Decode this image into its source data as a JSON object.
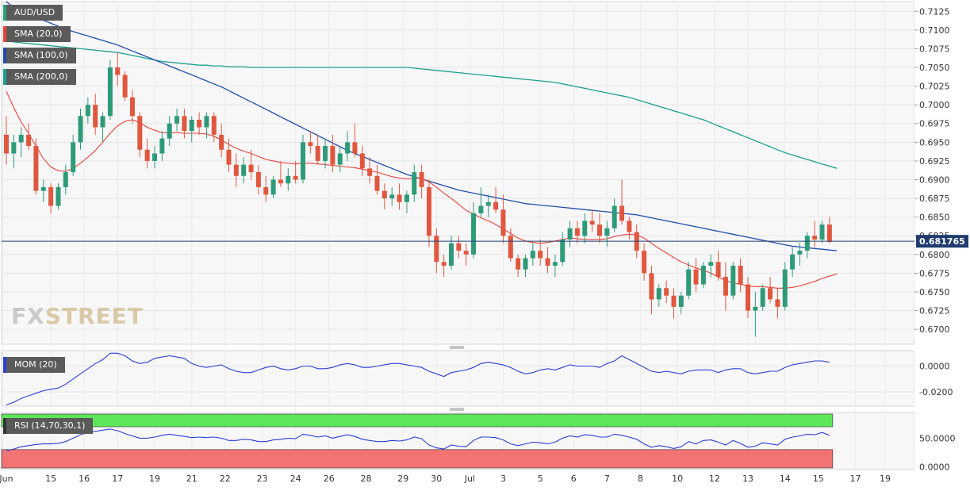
{
  "symbol": "AUD/USD",
  "watermark": {
    "part1": "FX",
    "part2": "STREET"
  },
  "legend": {
    "main": [
      {
        "label": "AUD/USD",
        "color": "#2aa37a"
      },
      {
        "label": "SMA (20,0)",
        "color": "#e8433b"
      },
      {
        "label": "SMA (100,0)",
        "color": "#1f4ea8"
      },
      {
        "label": "SMA (200,0)",
        "color": "#1aa08f"
      }
    ],
    "mom": {
      "label": "MOM (20)",
      "color": "#2a3fd6"
    },
    "rsi": {
      "label": "RSI (14,70,30,1)",
      "color": "#333333"
    }
  },
  "colors": {
    "up": "#2e9a78",
    "down": "#e0573f",
    "sma20": "#e8433b",
    "sma100": "#1f4ea8",
    "sma200": "#1aa08f",
    "indicator": "#2a3fd6",
    "price_line": "#1f3c6e",
    "rsi_overbought_band": "#5ee65a",
    "rsi_oversold_band": "#f27373"
  },
  "chart_data": {
    "type": "candlestick",
    "current_price": "0.681765",
    "x_labels": [
      "Jun",
      "15",
      "16",
      "17",
      "19",
      "21",
      "22",
      "23",
      "24",
      "26",
      "28",
      "29",
      "30",
      "Jul",
      "3",
      "5",
      "6",
      "7",
      "8",
      "10",
      "12",
      "13",
      "14",
      "15",
      "17",
      "19"
    ],
    "y_axis_main": {
      "ticks": [
        "0.7125",
        "0.7100",
        "0.7075",
        "0.7050",
        "0.7025",
        "0.7000",
        "0.6975",
        "0.6950",
        "0.6925",
        "0.6900",
        "0.6875",
        "0.6850",
        "0.6825",
        "0.6800",
        "0.6775",
        "0.6750",
        "0.6725",
        "0.6700"
      ],
      "range": [
        0.668,
        0.7138
      ]
    },
    "y_axis_mom": {
      "ticks": [
        "0.0000",
        "-0.0200"
      ],
      "range": [
        -0.031,
        0.012
      ]
    },
    "y_axis_rsi": {
      "ticks": [
        "50.0000",
        "0.0000"
      ],
      "range": [
        -5,
        95
      ],
      "overbought": 70,
      "oversold": 30
    },
    "candles": [
      [
        0.696,
        0.6985,
        0.692,
        0.6935
      ],
      [
        0.6935,
        0.696,
        0.6915,
        0.695
      ],
      [
        0.695,
        0.697,
        0.693,
        0.696
      ],
      [
        0.696,
        0.6975,
        0.694,
        0.6945
      ],
      [
        0.6945,
        0.6955,
        0.688,
        0.6885
      ],
      [
        0.6885,
        0.69,
        0.687,
        0.689
      ],
      [
        0.689,
        0.6895,
        0.6855,
        0.6865
      ],
      [
        0.6865,
        0.6895,
        0.686,
        0.689
      ],
      [
        0.689,
        0.692,
        0.688,
        0.691
      ],
      [
        0.691,
        0.696,
        0.6905,
        0.695
      ],
      [
        0.695,
        0.6995,
        0.694,
        0.6985
      ],
      [
        0.6985,
        0.701,
        0.6975,
        0.7
      ],
      [
        0.7,
        0.7015,
        0.696,
        0.697
      ],
      [
        0.697,
        0.699,
        0.695,
        0.6985
      ],
      [
        0.6985,
        0.706,
        0.698,
        0.705
      ],
      [
        0.705,
        0.707,
        0.7025,
        0.704
      ],
      [
        0.704,
        0.7045,
        0.7005,
        0.701
      ],
      [
        0.701,
        0.702,
        0.6975,
        0.6985
      ],
      [
        0.6985,
        0.699,
        0.693,
        0.694
      ],
      [
        0.694,
        0.6955,
        0.6915,
        0.6925
      ],
      [
        0.6925,
        0.6945,
        0.6915,
        0.6935
      ],
      [
        0.6935,
        0.6965,
        0.6925,
        0.6955
      ],
      [
        0.6955,
        0.6985,
        0.6945,
        0.6975
      ],
      [
        0.6975,
        0.6995,
        0.6965,
        0.6985
      ],
      [
        0.6985,
        0.6995,
        0.6955,
        0.6965
      ],
      [
        0.6965,
        0.6985,
        0.695,
        0.698
      ],
      [
        0.698,
        0.699,
        0.696,
        0.697
      ],
      [
        0.697,
        0.699,
        0.6955,
        0.6985
      ],
      [
        0.6985,
        0.699,
        0.695,
        0.696
      ],
      [
        0.696,
        0.6975,
        0.693,
        0.694
      ],
      [
        0.694,
        0.6955,
        0.691,
        0.692
      ],
      [
        0.692,
        0.6935,
        0.689,
        0.6905
      ],
      [
        0.6905,
        0.693,
        0.6895,
        0.692
      ],
      [
        0.692,
        0.694,
        0.69,
        0.691
      ],
      [
        0.691,
        0.692,
        0.688,
        0.689
      ],
      [
        0.689,
        0.6905,
        0.687,
        0.688
      ],
      [
        0.688,
        0.6905,
        0.6875,
        0.69
      ],
      [
        0.69,
        0.6925,
        0.689,
        0.6895
      ],
      [
        0.6895,
        0.6915,
        0.6885,
        0.6905
      ],
      [
        0.6905,
        0.6925,
        0.6895,
        0.69
      ],
      [
        0.69,
        0.696,
        0.6895,
        0.695
      ],
      [
        0.695,
        0.6965,
        0.6935,
        0.6945
      ],
      [
        0.6945,
        0.696,
        0.692,
        0.6925
      ],
      [
        0.6925,
        0.6955,
        0.6915,
        0.6945
      ],
      [
        0.6945,
        0.696,
        0.691,
        0.692
      ],
      [
        0.692,
        0.6945,
        0.691,
        0.6935
      ],
      [
        0.6935,
        0.6965,
        0.6925,
        0.695
      ],
      [
        0.695,
        0.6975,
        0.693,
        0.6935
      ],
      [
        0.6935,
        0.6945,
        0.6905,
        0.6915
      ],
      [
        0.6915,
        0.693,
        0.6895,
        0.6905
      ],
      [
        0.6905,
        0.692,
        0.688,
        0.6885
      ],
      [
        0.6885,
        0.6895,
        0.686,
        0.6875
      ],
      [
        0.6875,
        0.689,
        0.6865,
        0.688
      ],
      [
        0.688,
        0.6895,
        0.686,
        0.687
      ],
      [
        0.687,
        0.6885,
        0.6855,
        0.688
      ],
      [
        0.688,
        0.692,
        0.687,
        0.691
      ],
      [
        0.691,
        0.692,
        0.6875,
        0.689
      ],
      [
        0.689,
        0.69,
        0.681,
        0.6825
      ],
      [
        0.6825,
        0.6835,
        0.6775,
        0.679
      ],
      [
        0.679,
        0.68,
        0.677,
        0.6785
      ],
      [
        0.6785,
        0.6825,
        0.678,
        0.6815
      ],
      [
        0.6815,
        0.6825,
        0.6795,
        0.6805
      ],
      [
        0.6805,
        0.6815,
        0.6785,
        0.68
      ],
      [
        0.68,
        0.687,
        0.6795,
        0.6855
      ],
      [
        0.6855,
        0.689,
        0.685,
        0.6865
      ],
      [
        0.6865,
        0.688,
        0.685,
        0.687
      ],
      [
        0.687,
        0.689,
        0.6855,
        0.686
      ],
      [
        0.686,
        0.688,
        0.6815,
        0.6825
      ],
      [
        0.6825,
        0.6835,
        0.679,
        0.6795
      ],
      [
        0.6795,
        0.68,
        0.677,
        0.678
      ],
      [
        0.678,
        0.68,
        0.677,
        0.6795
      ],
      [
        0.6795,
        0.6815,
        0.6785,
        0.6805
      ],
      [
        0.6805,
        0.682,
        0.6785,
        0.6795
      ],
      [
        0.6795,
        0.681,
        0.6775,
        0.6785
      ],
      [
        0.6785,
        0.68,
        0.677,
        0.679
      ],
      [
        0.679,
        0.683,
        0.6785,
        0.682
      ],
      [
        0.682,
        0.6845,
        0.681,
        0.6835
      ],
      [
        0.6835,
        0.6845,
        0.6815,
        0.6825
      ],
      [
        0.6825,
        0.6855,
        0.6815,
        0.6845
      ],
      [
        0.6845,
        0.686,
        0.683,
        0.684
      ],
      [
        0.684,
        0.6855,
        0.6815,
        0.6825
      ],
      [
        0.6825,
        0.6845,
        0.681,
        0.6835
      ],
      [
        0.6835,
        0.6875,
        0.683,
        0.6865
      ],
      [
        0.6865,
        0.69,
        0.684,
        0.6845
      ],
      [
        0.6845,
        0.685,
        0.682,
        0.683
      ],
      [
        0.683,
        0.684,
        0.6795,
        0.6805
      ],
      [
        0.6805,
        0.6815,
        0.6765,
        0.6775
      ],
      [
        0.6775,
        0.6785,
        0.672,
        0.674
      ],
      [
        0.674,
        0.676,
        0.673,
        0.6755
      ],
      [
        0.6755,
        0.6765,
        0.6735,
        0.6745
      ],
      [
        0.6745,
        0.6755,
        0.6715,
        0.673
      ],
      [
        0.673,
        0.675,
        0.672,
        0.6745
      ],
      [
        0.6745,
        0.679,
        0.674,
        0.678
      ],
      [
        0.678,
        0.6795,
        0.675,
        0.676
      ],
      [
        0.676,
        0.679,
        0.6755,
        0.6785
      ],
      [
        0.6785,
        0.68,
        0.677,
        0.679
      ],
      [
        0.679,
        0.6805,
        0.6765,
        0.677
      ],
      [
        0.677,
        0.679,
        0.6725,
        0.6745
      ],
      [
        0.6745,
        0.679,
        0.674,
        0.6785
      ],
      [
        0.6785,
        0.6795,
        0.675,
        0.676
      ],
      [
        0.676,
        0.677,
        0.6715,
        0.6725
      ],
      [
        0.6725,
        0.675,
        0.669,
        0.673
      ],
      [
        0.673,
        0.676,
        0.6725,
        0.6755
      ],
      [
        0.6755,
        0.677,
        0.6735,
        0.674
      ],
      [
        0.674,
        0.6755,
        0.6715,
        0.673
      ],
      [
        0.673,
        0.679,
        0.6725,
        0.678
      ],
      [
        0.678,
        0.681,
        0.677,
        0.68
      ],
      [
        0.68,
        0.6815,
        0.6785,
        0.6805
      ],
      [
        0.6805,
        0.683,
        0.6795,
        0.6825
      ],
      [
        0.6825,
        0.6845,
        0.681,
        0.682
      ],
      [
        0.682,
        0.6845,
        0.6815,
        0.684
      ],
      [
        0.684,
        0.685,
        0.6815,
        0.6817
      ]
    ],
    "sma20": [
      0.7018,
      0.6996,
      0.6977,
      0.6962,
      0.6945,
      0.6928,
      0.6917,
      0.6912,
      0.6911,
      0.6915,
      0.6922,
      0.693,
      0.6939,
      0.695,
      0.6962,
      0.6972,
      0.6978,
      0.698,
      0.6976,
      0.697,
      0.6966,
      0.6963,
      0.6962,
      0.6963,
      0.6962,
      0.6962,
      0.6962,
      0.6961,
      0.6958,
      0.6953,
      0.6947,
      0.6942,
      0.6938,
      0.6935,
      0.6931,
      0.6927,
      0.6925,
      0.6923,
      0.6922,
      0.6921,
      0.6922,
      0.6922,
      0.6921,
      0.692,
      0.6919,
      0.6918,
      0.6917,
      0.6916,
      0.6914,
      0.6912,
      0.691,
      0.6907,
      0.6904,
      0.6902,
      0.6901,
      0.6902,
      0.6902,
      0.6897,
      0.689,
      0.6882,
      0.6875,
      0.6867,
      0.6859,
      0.6854,
      0.6849,
      0.6845,
      0.684,
      0.6834,
      0.6828,
      0.6822,
      0.6818,
      0.6816,
      0.6815,
      0.6816,
      0.6818,
      0.682,
      0.6822,
      0.6821,
      0.682,
      0.682,
      0.682,
      0.6821,
      0.6824,
      0.6826,
      0.6827,
      0.6826,
      0.6822,
      0.6815,
      0.6808,
      0.6802,
      0.6796,
      0.679,
      0.6786,
      0.6782,
      0.6779,
      0.6775,
      0.677,
      0.6765,
      0.6762,
      0.676,
      0.6758,
      0.6757,
      0.6757,
      0.6756,
      0.6755,
      0.6755,
      0.6756,
      0.6758,
      0.6761,
      0.6764,
      0.6768,
      0.6771,
      0.6774
    ],
    "sma100": [
      0.7138,
      0.713,
      0.7125,
      0.7121,
      0.7117,
      0.7113,
      0.7109,
      0.7105,
      0.7101,
      0.7098,
      0.7095,
      0.7092,
      0.7089,
      0.7086,
      0.7083,
      0.708,
      0.7076,
      0.7072,
      0.7068,
      0.7064,
      0.706,
      0.7056,
      0.7052,
      0.7048,
      0.7044,
      0.704,
      0.7036,
      0.7032,
      0.7028,
      0.7024,
      0.7019,
      0.7014,
      0.7009,
      0.7004,
      0.6999,
      0.6994,
      0.6989,
      0.6984,
      0.6979,
      0.6974,
      0.6969,
      0.6964,
      0.6959,
      0.6954,
      0.6949,
      0.6944,
      0.6939,
      0.6935,
      0.6931,
      0.6927,
      0.6923,
      0.6919,
      0.6915,
      0.6911,
      0.6907,
      0.6904,
      0.6901,
      0.6898,
      0.6895,
      0.6892,
      0.6889,
      0.6886,
      0.6884,
      0.6882,
      0.688,
      0.6878,
      0.6876,
      0.6874,
      0.6872,
      0.687,
      0.6868,
      0.6867,
      0.6866,
      0.6865,
      0.6864,
      0.6863,
      0.6862,
      0.6861,
      0.686,
      0.6859,
      0.6858,
      0.6857,
      0.6856,
      0.6855,
      0.6854,
      0.6853,
      0.6851,
      0.6849,
      0.6847,
      0.6845,
      0.6843,
      0.6841,
      0.6839,
      0.6837,
      0.6835,
      0.6833,
      0.6831,
      0.6829,
      0.6827,
      0.6825,
      0.6823,
      0.6821,
      0.6819,
      0.6817,
      0.6815,
      0.6813,
      0.6811,
      0.681,
      0.6809,
      0.6808,
      0.6807,
      0.6806,
      0.6805
    ],
    "sma200": [
      0.7085,
      0.7084,
      0.7083,
      0.7082,
      0.7081,
      0.708,
      0.7079,
      0.7078,
      0.7077,
      0.7076,
      0.7075,
      0.7074,
      0.7073,
      0.7072,
      0.7071,
      0.707,
      0.7068,
      0.7066,
      0.7064,
      0.7062,
      0.706,
      0.7058,
      0.7057,
      0.7056,
      0.7055,
      0.7054,
      0.7053,
      0.7053,
      0.7052,
      0.7052,
      0.7051,
      0.7051,
      0.7051,
      0.705,
      0.705,
      0.705,
      0.705,
      0.705,
      0.705,
      0.705,
      0.705,
      0.705,
      0.705,
      0.705,
      0.705,
      0.705,
      0.705,
      0.705,
      0.705,
      0.705,
      0.705,
      0.705,
      0.705,
      0.705,
      0.705,
      0.7049,
      0.7048,
      0.7047,
      0.7046,
      0.7045,
      0.7044,
      0.7043,
      0.7042,
      0.7041,
      0.704,
      0.7039,
      0.7038,
      0.7037,
      0.7036,
      0.7035,
      0.7034,
      0.7033,
      0.7032,
      0.7031,
      0.703,
      0.7028,
      0.7026,
      0.7024,
      0.7022,
      0.702,
      0.7018,
      0.7016,
      0.7014,
      0.7012,
      0.701,
      0.7007,
      0.7004,
      0.7001,
      0.6998,
      0.6995,
      0.6992,
      0.6989,
      0.6986,
      0.6983,
      0.698,
      0.6976,
      0.6972,
      0.6968,
      0.6964,
      0.696,
      0.6956,
      0.6952,
      0.6948,
      0.6944,
      0.694,
      0.6936,
      0.6933,
      0.693,
      0.6927,
      0.6924,
      0.6921,
      0.6918,
      0.6915
    ],
    "mom": [
      -0.03,
      -0.028,
      -0.025,
      -0.023,
      -0.021,
      -0.019,
      -0.018,
      -0.017,
      -0.014,
      -0.01,
      -0.006,
      -0.002,
      0.002,
      0.005,
      0.01,
      0.01,
      0.008,
      0.004,
      0.002,
      0.003,
      0.006,
      0.007,
      0.008,
      0.007,
      0.006,
      0.002,
      0.0,
      -0.001,
      0.0,
      0.001,
      -0.002,
      -0.004,
      -0.005,
      -0.005,
      -0.003,
      -0.001,
      0.0,
      -0.002,
      -0.003,
      -0.002,
      0.0,
      0.0,
      -0.002,
      -0.002,
      -0.001,
      0.001,
      0.002,
      0.001,
      -0.001,
      -0.001,
      0.0,
      0.001,
      0.002,
      0.002,
      0.001,
      0.0,
      -0.001,
      -0.004,
      -0.006,
      -0.008,
      -0.005,
      -0.004,
      -0.003,
      -0.001,
      0.002,
      0.003,
      0.002,
      0.001,
      -0.001,
      -0.004,
      -0.006,
      -0.005,
      -0.003,
      -0.002,
      -0.003,
      -0.001,
      0.001,
      0.0,
      0.0,
      0.0,
      -0.001,
      0.002,
      0.004,
      0.008,
      0.005,
      0.002,
      -0.001,
      -0.004,
      -0.005,
      -0.004,
      -0.005,
      -0.006,
      -0.004,
      -0.003,
      -0.003,
      -0.003,
      -0.005,
      -0.003,
      -0.002,
      -0.002,
      -0.005,
      -0.006,
      -0.005,
      -0.004,
      -0.004,
      -0.001,
      0.001,
      0.002,
      0.003,
      0.004,
      0.004,
      0.003
    ],
    "rsi": [
      28,
      31,
      35,
      37,
      39,
      40,
      40,
      41,
      44,
      50,
      56,
      60,
      62,
      64,
      66,
      63,
      58,
      54,
      50,
      50,
      52,
      55,
      57,
      55,
      53,
      51,
      52,
      51,
      52,
      50,
      46,
      46,
      48,
      47,
      44,
      44,
      47,
      48,
      50,
      49,
      57,
      55,
      52,
      54,
      50,
      53,
      56,
      53,
      48,
      46,
      44,
      44,
      46,
      45,
      47,
      52,
      49,
      38,
      33,
      31,
      38,
      36,
      35,
      46,
      52,
      52,
      51,
      47,
      40,
      37,
      40,
      43,
      42,
      40,
      43,
      50,
      54,
      52,
      56,
      55,
      52,
      52,
      57,
      55,
      52,
      48,
      40,
      34,
      37,
      35,
      32,
      35,
      44,
      40,
      46,
      47,
      43,
      38,
      46,
      41,
      34,
      36,
      42,
      40,
      38,
      48,
      52,
      54,
      57,
      56,
      60,
      55
    ]
  }
}
